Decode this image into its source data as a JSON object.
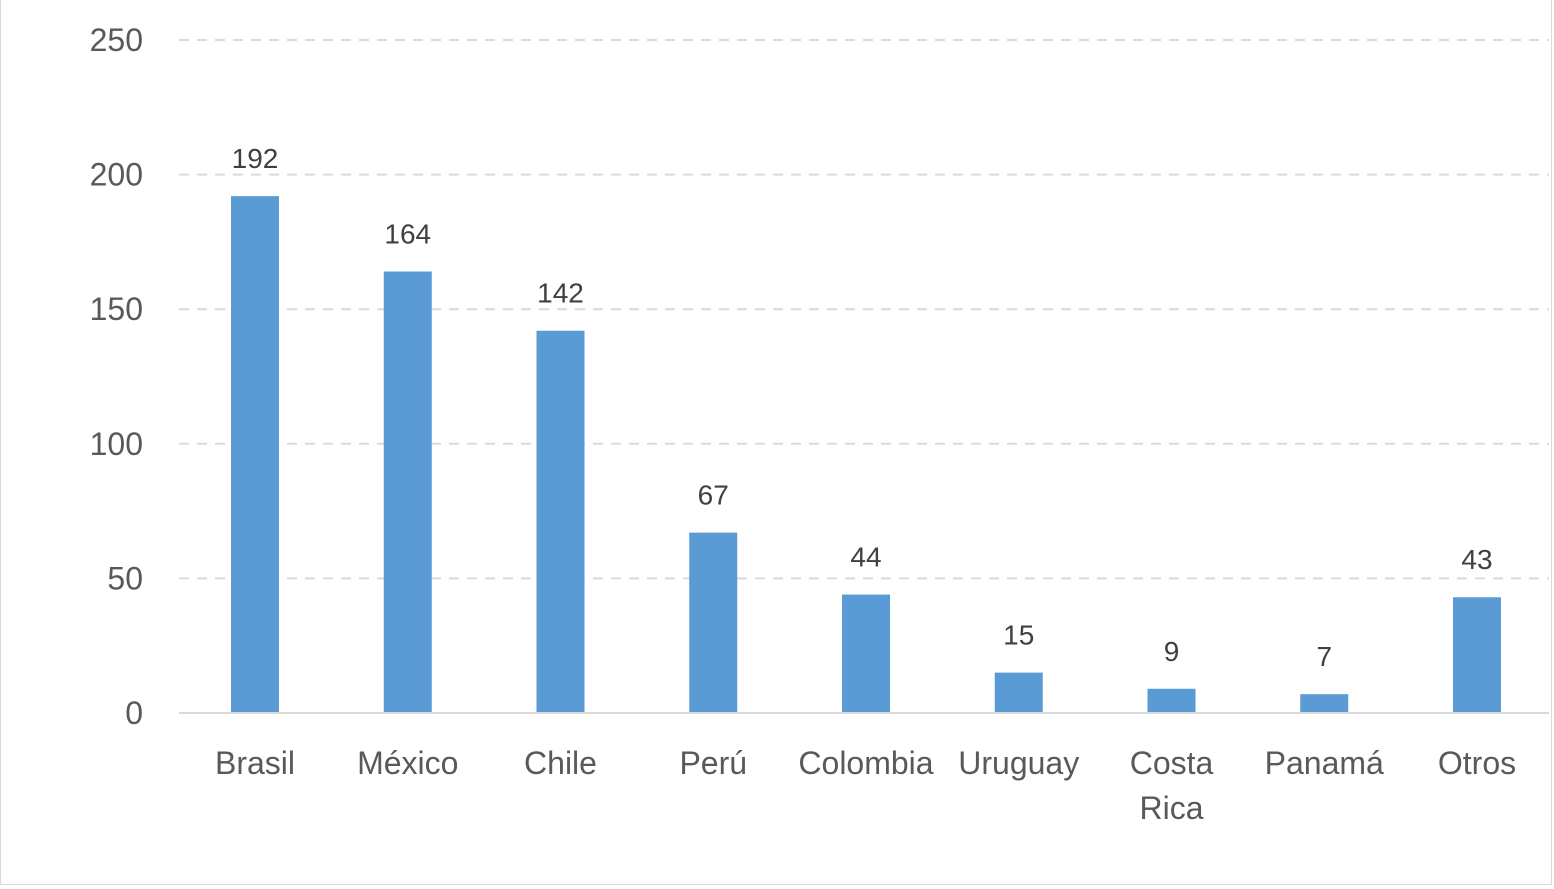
{
  "chart_data": {
    "type": "bar",
    "categories": [
      "Brasil",
      "México",
      "Chile",
      "Perú",
      "Colombia",
      "Uruguay",
      "Costa Rica",
      "Panamá",
      "Otros"
    ],
    "category_lines": [
      [
        "Brasil"
      ],
      [
        "México"
      ],
      [
        "Chile"
      ],
      [
        "Perú"
      ],
      [
        "Colombia"
      ],
      [
        "Uruguay"
      ],
      [
        "Costa",
        "Rica"
      ],
      [
        "Panamá"
      ],
      [
        "Otros"
      ]
    ],
    "values": [
      192,
      164,
      142,
      67,
      44,
      15,
      9,
      7,
      43
    ],
    "data_labels": [
      "192",
      "164",
      "142",
      "67",
      "44",
      "15",
      "9",
      "7",
      "43"
    ],
    "y_ticks": [
      "0",
      "50",
      "100",
      "150",
      "200",
      "250"
    ],
    "ylim": [
      0,
      250
    ],
    "grid": true,
    "bar_color": "#5b9bd5",
    "grid_color": "#d9d9d9",
    "label_color": "#595959",
    "legend": "none"
  }
}
